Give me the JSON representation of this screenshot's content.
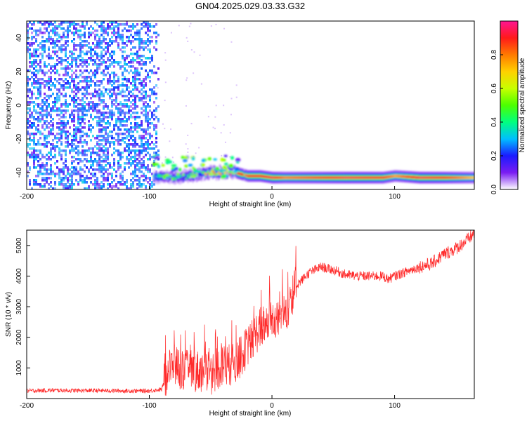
{
  "title": "GN04.2025.029.03.33.G32",
  "chart_data": [
    {
      "type": "heatmap",
      "xlabel": "Height of straight line (km)",
      "ylabel": "Frequency (Hz)",
      "xlim": [
        -200,
        165
      ],
      "ylim": [
        -50,
        50
      ],
      "xticks": [
        "-200",
        "-100",
        "0",
        "100"
      ],
      "yticks": [
        "-40",
        "-20",
        "0",
        "20",
        "40"
      ],
      "noise_region": {
        "x": [
          -200,
          -97
        ],
        "y": [
          -50,
          50
        ]
      },
      "signal_ridge": {
        "x": [
          -97,
          -90,
          -80,
          -70,
          -60,
          -50,
          -40,
          -30,
          -20,
          -10,
          0,
          10,
          30,
          60,
          90,
          100,
          120,
          140,
          165
        ],
        "frequency": [
          -43,
          -42,
          -43,
          -42,
          -41,
          -40,
          -40,
          -40,
          -42,
          -42,
          -43,
          -43,
          -43,
          -43,
          -43,
          -42,
          -43,
          -43,
          -43
        ],
        "amplitude": [
          0.45,
          0.5,
          0.5,
          0.55,
          0.7,
          0.8,
          0.75,
          0.85,
          0.9,
          0.9,
          0.95,
          0.8,
          0.85,
          0.95,
          0.9,
          0.75,
          0.95,
          0.9,
          0.7
        ]
      },
      "colorbar": {
        "label": "Normalized spectral amplitude",
        "range": [
          0,
          1
        ],
        "ticks": [
          "0.0",
          "0.2",
          "0.4",
          "0.6",
          "0.8"
        ],
        "colors": [
          "#ffffff",
          "#7a1cf2",
          "#1b1bff",
          "#00bfff",
          "#00ff7f",
          "#4cff00",
          "#c8ff00",
          "#ffd000",
          "#ff7a00",
          "#ff1a1a",
          "#ff1493"
        ]
      }
    },
    {
      "type": "line",
      "xlabel": "Height of straight line (km)",
      "ylabel": "SNR (10 * v/v)",
      "xlim": [
        -200,
        165
      ],
      "ylim": [
        0,
        5500
      ],
      "xticks": [
        "-200",
        "-100",
        "0",
        "100"
      ],
      "yticks": [
        "1000",
        "2000",
        "3000",
        "4000",
        "5000"
      ],
      "color": "#ff2a2a",
      "series": [
        {
          "x": [
            -200,
            -180,
            -160,
            -140,
            -120,
            -100,
            -90,
            -85,
            -80,
            -75,
            -70,
            -60,
            -50,
            -40,
            -30,
            -20,
            -10,
            0,
            10,
            20,
            30,
            40,
            50,
            60,
            70,
            80,
            90,
            95,
            100,
            110,
            120,
            130,
            140,
            150,
            160,
            165
          ],
          "y": [
            250,
            270,
            260,
            260,
            250,
            250,
            300,
            900,
            1100,
            1000,
            900,
            900,
            800,
            1100,
            1100,
            1700,
            2300,
            2600,
            2700,
            3700,
            4100,
            4300,
            4200,
            4050,
            4000,
            4000,
            4000,
            3900,
            4000,
            4150,
            4300,
            4400,
            4700,
            4900,
            5200,
            5400
          ]
        }
      ]
    }
  ]
}
